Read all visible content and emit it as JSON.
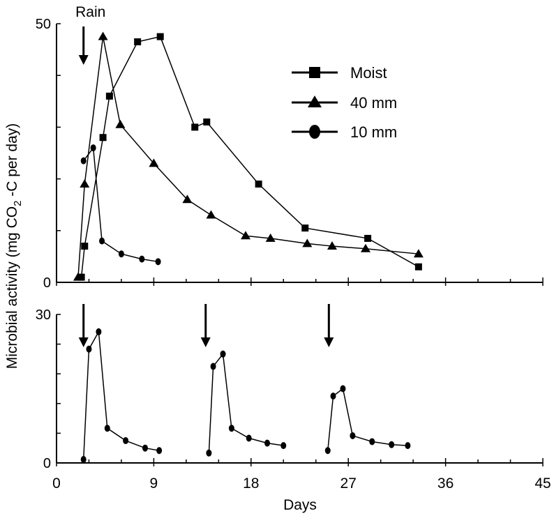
{
  "chart_data": [
    {
      "type": "line",
      "ylim": [
        0,
        50
      ],
      "xlim": [
        0,
        45
      ],
      "ytick_labels": [
        "0",
        "50"
      ],
      "annotations": [
        {
          "text": "Rain",
          "x": 2.5
        }
      ],
      "legend": {
        "placement": "top-right"
      },
      "series": [
        {
          "name": "Moist",
          "marker": "square",
          "x": [
            2.3,
            2.6,
            4.3,
            4.9,
            7.5,
            9.6,
            12.8,
            13.9,
            18.7,
            23.0,
            28.8,
            33.5
          ],
          "y": [
            1.0,
            7.0,
            28.0,
            36.0,
            46.5,
            47.5,
            30.0,
            31.0,
            19.0,
            10.5,
            8.5,
            3.0
          ]
        },
        {
          "name": "40 mm",
          "marker": "triangle",
          "x": [
            2.0,
            2.6,
            4.3,
            5.9,
            9.0,
            12.1,
            14.3,
            17.5,
            19.8,
            23.2,
            25.5,
            28.6,
            33.5
          ],
          "y": [
            1.0,
            19.0,
            47.5,
            30.5,
            23.0,
            16.0,
            13.0,
            9.0,
            8.5,
            7.5,
            7.0,
            6.5,
            5.5
          ]
        },
        {
          "name": "10 mm",
          "marker": "circle",
          "x": [
            2.5,
            3.4,
            4.2,
            6.0,
            7.9,
            9.4
          ],
          "y": [
            23.5,
            26.0,
            8.0,
            5.5,
            4.5,
            4.0
          ]
        }
      ]
    },
    {
      "type": "line",
      "ylim": [
        0,
        30
      ],
      "xlim": [
        0,
        45
      ],
      "xlabel": "Days",
      "ylabel": "Microbial activity (mg CO2 -C per day)",
      "ylabel_parts": {
        "before": "Microbial activity (mg CO",
        "sub": "2",
        "after": " -C per day)"
      },
      "xtick_labels": [
        "0",
        "9",
        "18",
        "27",
        "36",
        "45"
      ],
      "ytick_labels": [
        "0",
        "30"
      ],
      "rain_events_days": [
        2.5,
        13.8,
        25.2
      ],
      "series": [
        {
          "name": "10 mm",
          "marker": "circle",
          "x": [
            2.5,
            3.0,
            3.9,
            4.7,
            6.4,
            8.2,
            9.5,
            14.1,
            14.5,
            15.4,
            16.2,
            17.8,
            19.5,
            21.0,
            25.1,
            25.6,
            26.5,
            27.4,
            29.2,
            31.0,
            32.5
          ],
          "y": [
            0.7,
            23.0,
            26.5,
            7.0,
            4.5,
            3.0,
            2.5,
            2.0,
            19.5,
            22.0,
            7.0,
            5.0,
            4.0,
            3.5,
            2.5,
            13.5,
            15.0,
            5.5,
            4.3,
            3.7,
            3.5
          ]
        }
      ]
    }
  ]
}
